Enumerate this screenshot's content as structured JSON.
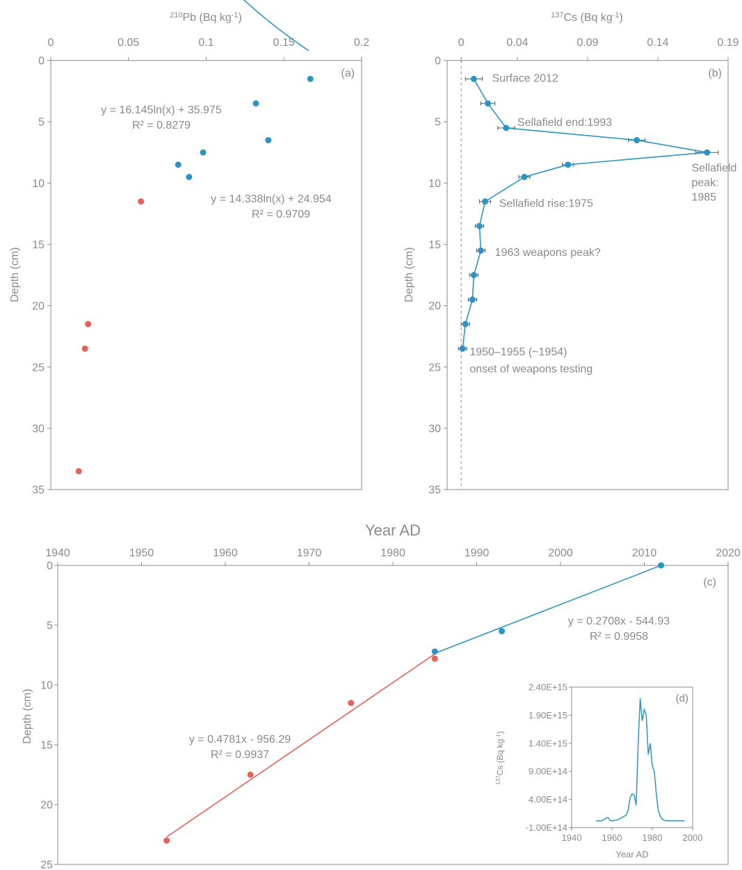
{
  "chart_data": [
    {
      "type": "scatter",
      "panel_label": "(a)",
      "xlabel": "Pb (Bq kg-1)",
      "xlabel_sup": "210",
      "xlabel_pre": "",
      "xlabel_main": "Pb (Bq kg",
      "xlabel_exp": "-1",
      "xlabel_post": ")",
      "ylabel": "Depth (cm)",
      "xlim": [
        0,
        0.2
      ],
      "ylim": [
        0,
        35
      ],
      "xticks": [
        "0",
        "0.05",
        "0.1",
        "0.15",
        "0.2"
      ],
      "xtick_values": [
        0,
        0.05,
        0.1,
        0.15,
        0.2
      ],
      "yticks": [
        "0",
        "5",
        "10",
        "15",
        "20",
        "25",
        "30",
        "35"
      ],
      "ytick_values": [
        0,
        5,
        10,
        15,
        20,
        25,
        30,
        35
      ],
      "series": [
        {
          "color": "#2b95c6",
          "points": [
            [
              0.167,
              1.5
            ],
            [
              0.132,
              3.5
            ],
            [
              0.14,
              6.5
            ],
            [
              0.098,
              7.5
            ],
            [
              0.082,
              8.5
            ],
            [
              0.089,
              9.5
            ]
          ],
          "fit": {
            "a": 14.338,
            "b": 24.954,
            "x_from": 0.0185,
            "x_to": 0.166
          },
          "equation": "y = 14.338ln(x) + 24.954",
          "r2": "R² = 0.9709"
        },
        {
          "color": "#e8615a",
          "points": [
            [
              0.058,
              11.5
            ],
            [
              0.024,
              21.5
            ],
            [
              0.022,
              23.5
            ],
            [
              0.018,
              33.5
            ]
          ],
          "fit": {
            "a": 16.145,
            "b": 35.975,
            "x_from": 0.0195,
            "x_to": 0.056
          },
          "equation": "y = 16.145ln(x) + 35.975",
          "r2": "R² = 0.8279"
        }
      ]
    },
    {
      "type": "line",
      "panel_label": "(b)",
      "xlabel_sup": "137",
      "xlabel_main": "Cs (Bq kg",
      "xlabel_exp": "-1",
      "xlabel_post": ")",
      "ylabel": "Depth (cm)",
      "xlim": [
        -0.01,
        0.19
      ],
      "ylim": [
        0,
        35
      ],
      "xticks": [
        "0",
        "0.04",
        "0.09",
        "0.14",
        "0.19"
      ],
      "xtick_values": [
        0,
        0.04,
        0.09,
        0.14,
        0.19
      ],
      "yticks": [
        "0",
        "5",
        "10",
        "15",
        "20",
        "25",
        "30",
        "35"
      ],
      "ytick_values": [
        0,
        5,
        10,
        15,
        20,
        25,
        30,
        35
      ],
      "color": "#2b95c6",
      "points": [
        [
          0.009,
          1.5,
          0.006
        ],
        [
          0.019,
          3.5,
          0.005
        ],
        [
          0.032,
          5.5,
          0.006
        ],
        [
          0.125,
          6.5,
          0.006
        ],
        [
          0.175,
          7.5,
          0.008
        ],
        [
          0.076,
          8.5,
          0.004
        ],
        [
          0.045,
          9.5,
          0.004
        ],
        [
          0.017,
          11.5,
          0.004
        ],
        [
          0.013,
          13.5,
          0.003
        ],
        [
          0.014,
          15.5,
          0.003
        ],
        [
          0.009,
          17.5,
          0.003
        ],
        [
          0.008,
          19.5,
          0.003
        ],
        [
          0.003,
          21.5,
          0.003
        ],
        [
          0.001,
          23.5,
          0.003
        ]
      ],
      "annotations": [
        {
          "text": "Surface 2012",
          "x": 0.022,
          "y": 1.4
        },
        {
          "text": "Sellafield end:1993",
          "x": 0.04,
          "y": 5.0
        },
        {
          "text": "Sellafield",
          "x": 0.164,
          "y": 8.7
        },
        {
          "text": "peak:",
          "x": 0.164,
          "y": 9.9
        },
        {
          "text": "1985",
          "x": 0.164,
          "y": 11.1
        },
        {
          "text": "Sellafield rise:1975",
          "x": 0.027,
          "y": 11.6
        },
        {
          "text": "1963 weapons peak?",
          "x": 0.024,
          "y": 15.6
        },
        {
          "text": "1950–1955 (~1954)",
          "x": 0.006,
          "y": 23.7
        },
        {
          "text": "onset of weapons testing",
          "x": 0.006,
          "y": 25.1
        }
      ]
    },
    {
      "type": "line",
      "panel_label": "(c)",
      "title": "Year AD",
      "ylabel": "Depth (cm)",
      "xlim": [
        1940,
        2020
      ],
      "ylim": [
        0,
        25
      ],
      "xticks": [
        "1940",
        "1950",
        "1960",
        "1970",
        "1980",
        "1990",
        "2000",
        "2010",
        "2020"
      ],
      "xtick_values": [
        1940,
        1950,
        1960,
        1970,
        1980,
        1990,
        2000,
        2010,
        2020
      ],
      "yticks": [
        "0",
        "5",
        "10",
        "15",
        "20",
        "25"
      ],
      "ytick_values": [
        0,
        5,
        10,
        15,
        20,
        25
      ],
      "series": [
        {
          "color": "#2b95c6",
          "points": [
            [
              2012,
              0
            ],
            [
              1993,
              5.5
            ],
            [
              1985,
              7.2
            ]
          ],
          "fit_line": [
            [
              2012,
              0
            ],
            [
              1985,
              7.35
            ]
          ],
          "equation": "y = 0.2708x - 544.93",
          "r2": "R² = 0.9958"
        },
        {
          "color": "#e8615a",
          "points": [
            [
              1985,
              7.8
            ],
            [
              1975,
              11.5
            ],
            [
              1963,
              17.5
            ],
            [
              1953,
              23
            ]
          ],
          "fit_line": [
            [
              1953,
              22.7
            ],
            [
              1985,
              7.4
            ]
          ],
          "equation": "y = 0.4781x - 956.29",
          "r2": "R² = 0.9937"
        }
      ]
    },
    {
      "type": "line",
      "panel_label": "(d)",
      "xlabel": "Year AD",
      "ylabel_sup": "137",
      "ylabel_main": "Cs (Bq kg",
      "ylabel_exp": "-1",
      "ylabel_post": ")",
      "xlim": [
        1940,
        2000
      ],
      "ylim": [
        -100000000000000.0,
        2400000000000000.0
      ],
      "xticks": [
        "1940",
        "1960",
        "1980",
        "2000"
      ],
      "xtick_values": [
        1940,
        1960,
        1980,
        2000
      ],
      "yticks": [
        "-1.00E+14",
        "4.00E+14",
        "9.00E+14",
        "1.40E+15",
        "1.90E+15",
        "2.40E+15"
      ],
      "ytick_values": [
        -100000000000000.0,
        400000000000000.0,
        900000000000000.0,
        1400000000000000.0,
        1900000000000000.0,
        2400000000000000.0
      ],
      "color": "#2b95c6",
      "x": [
        1952,
        1955,
        1956,
        1957,
        1958,
        1959,
        1960,
        1961,
        1962,
        1963,
        1964,
        1965,
        1966,
        1967,
        1968,
        1969,
        1970,
        1971,
        1972,
        1973,
        1974,
        1975,
        1976,
        1977,
        1978,
        1979,
        1980,
        1981,
        1982,
        1983,
        1984,
        1985,
        1986,
        1988,
        1990,
        1996
      ],
      "y": [
        20000000000000.0,
        20000000000000.0,
        40000000000000.0,
        70000000000000.0,
        80000000000000.0,
        30000000000000.0,
        20000000000000.0,
        30000000000000.0,
        30000000000000.0,
        40000000000000.0,
        60000000000000.0,
        80000000000000.0,
        100000000000000.0,
        120000000000000.0,
        200000000000000.0,
        430000000000000.0,
        500000000000000.0,
        480000000000000.0,
        300000000000000.0,
        1400000000000000.0,
        2200000000000000.0,
        1800000000000000.0,
        2000000000000000.0,
        1900000000000000.0,
        1200000000000000.0,
        1400000000000000.0,
        1000000000000000.0,
        900000000000000.0,
        500000000000000.0,
        200000000000000.0,
        100000000000000.0,
        50000000000000.0,
        30000000000000.0,
        20000000000000.0,
        20000000000000.0,
        20000000000000.0
      ]
    }
  ]
}
